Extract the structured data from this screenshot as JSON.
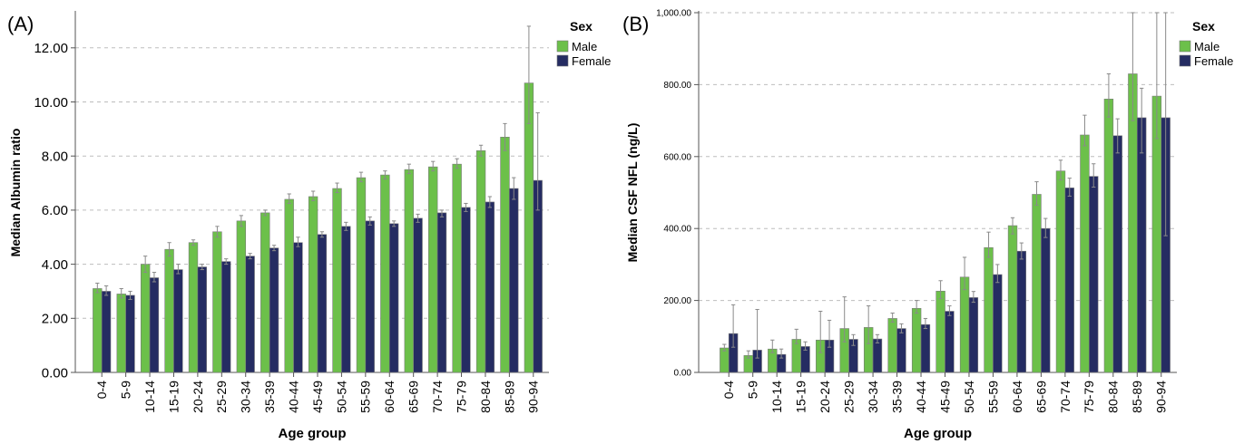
{
  "chart_data": [
    {
      "panel_label": "(A)",
      "type": "bar",
      "categories": [
        "0-4",
        "5-9",
        "10-14",
        "15-19",
        "20-24",
        "25-29",
        "30-34",
        "35-39",
        "40-44",
        "45-49",
        "50-54",
        "55-59",
        "60-64",
        "65-69",
        "70-74",
        "75-79",
        "80-84",
        "85-89",
        "90-94"
      ],
      "series": [
        {
          "name": "Male",
          "color": "#6cc04a",
          "values": [
            3.1,
            2.9,
            4.0,
            4.55,
            4.8,
            5.2,
            5.6,
            5.9,
            6.4,
            6.5,
            6.8,
            7.2,
            7.3,
            7.5,
            7.6,
            7.7,
            8.2,
            8.7,
            10.7
          ],
          "err_low": [
            2.95,
            2.75,
            3.7,
            4.3,
            4.7,
            5.0,
            5.4,
            5.8,
            6.25,
            6.35,
            6.65,
            7.05,
            7.15,
            7.35,
            7.45,
            7.55,
            8.0,
            8.2,
            9.2
          ],
          "err_high": [
            3.3,
            3.1,
            4.3,
            4.8,
            4.9,
            5.4,
            5.8,
            6.0,
            6.6,
            6.7,
            7.0,
            7.4,
            7.45,
            7.7,
            7.8,
            7.9,
            8.4,
            9.2,
            12.8
          ]
        },
        {
          "name": "Female",
          "color": "#252c62",
          "values": [
            3.0,
            2.85,
            3.5,
            3.8,
            3.9,
            4.1,
            4.3,
            4.6,
            4.8,
            5.1,
            5.4,
            5.6,
            5.5,
            5.7,
            5.9,
            6.1,
            6.3,
            6.8,
            7.1
          ],
          "err_low": [
            2.85,
            2.7,
            3.35,
            3.65,
            3.8,
            4.0,
            4.2,
            4.5,
            4.65,
            5.0,
            5.25,
            5.45,
            5.4,
            5.55,
            5.75,
            5.95,
            6.1,
            6.4,
            6.0
          ],
          "err_high": [
            3.2,
            3.0,
            3.7,
            4.0,
            4.0,
            4.2,
            4.4,
            4.7,
            5.0,
            5.2,
            5.55,
            5.75,
            5.6,
            5.85,
            6.0,
            6.25,
            6.5,
            7.2,
            9.6
          ]
        }
      ],
      "xlabel": "Age group",
      "ylabel": "Median Albumin ratio",
      "ylim": [
        0,
        13.3
      ],
      "yticks": [
        "0.00",
        "2.00",
        "4.00",
        "6.00",
        "8.00",
        "10.00",
        "12.00"
      ],
      "ytick_values": [
        0,
        2,
        4,
        6,
        8,
        10,
        12
      ],
      "legend_title": "Sex",
      "legend_position": "top-right",
      "grid": "horizontal dashed"
    },
    {
      "panel_label": "(B)",
      "type": "bar",
      "categories": [
        "0-4",
        "5-9",
        "10-14",
        "15-19",
        "20-24",
        "25-29",
        "30-34",
        "35-39",
        "40-44",
        "45-49",
        "50-54",
        "55-59",
        "60-64",
        "65-69",
        "70-74",
        "75-79",
        "80-84",
        "85-89",
        "90-94"
      ],
      "series": [
        {
          "name": "Male",
          "color": "#6cc04a",
          "values": [
            68,
            47,
            65,
            92,
            90,
            122,
            125,
            150,
            178,
            226,
            265,
            347,
            408,
            495,
            560,
            660,
            760,
            830,
            768
          ],
          "err_low": [
            60,
            40,
            55,
            80,
            55,
            85,
            80,
            140,
            165,
            205,
            230,
            320,
            385,
            465,
            535,
            630,
            710,
            700,
            650
          ],
          "err_high": [
            78,
            60,
            90,
            120,
            170,
            210,
            185,
            165,
            200,
            255,
            320,
            390,
            430,
            530,
            590,
            715,
            830,
            1000,
            1000
          ]
        },
        {
          "name": "Female",
          "color": "#252c62",
          "values": [
            108,
            62,
            50,
            72,
            90,
            92,
            93,
            122,
            133,
            170,
            208,
            272,
            337,
            400,
            513,
            545,
            658,
            708,
            708
          ],
          "err_low": [
            70,
            40,
            40,
            62,
            70,
            75,
            82,
            110,
            122,
            158,
            195,
            250,
            315,
            375,
            490,
            515,
            610,
            610,
            380
          ],
          "err_high": [
            188,
            175,
            65,
            85,
            145,
            105,
            105,
            135,
            150,
            185,
            225,
            300,
            360,
            428,
            540,
            580,
            705,
            790,
            1000
          ]
        }
      ],
      "xlabel": "Age group",
      "ylabel": "Median CSF NFL (ng/L)",
      "ylim": [
        0,
        1000
      ],
      "yticks": [
        "0.00",
        "200.00",
        "400.00",
        "600.00",
        "800.00",
        "1,000.00"
      ],
      "ytick_values": [
        0,
        200,
        400,
        600,
        800,
        1000
      ],
      "legend_title": "Sex",
      "legend_position": "top-right",
      "grid": "horizontal dashed"
    }
  ]
}
